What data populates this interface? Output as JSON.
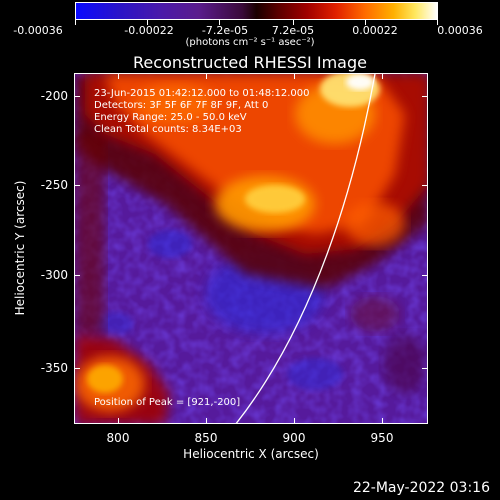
{
  "colorbar": {
    "ticks": [
      "-0.00036",
      "-0.00022",
      "-7.2e-05",
      "7.2e-05",
      "0.00022",
      "0.00036"
    ],
    "units": "(photons cm⁻² s⁻¹ asec⁻²)"
  },
  "title": "Reconstructed RHESSI Image",
  "annotations": {
    "time": "23-Jun-2015 01:42:12.000 to 01:48:12.000",
    "detectors": "Detectors: 3F 5F 6F 7F 8F 9F, Att 0",
    "energy": "Energy Range: 25.0 - 50.0 keV",
    "clean": "Clean    Total counts: 8.34E+03",
    "peak": "Position of Peak = [921,-200]"
  },
  "axes": {
    "x_label": "Heliocentric X (arcsec)",
    "y_label": "Heliocentric Y (arcsec)",
    "x_ticks": [
      "800",
      "850",
      "900",
      "950"
    ],
    "y_ticks": [
      "-200",
      "-250",
      "-300",
      "-350"
    ]
  },
  "footer": {
    "timestamp": "22-May-2022 03:16"
  },
  "colors": {
    "background": "#000000",
    "limb": "#ffffff"
  }
}
